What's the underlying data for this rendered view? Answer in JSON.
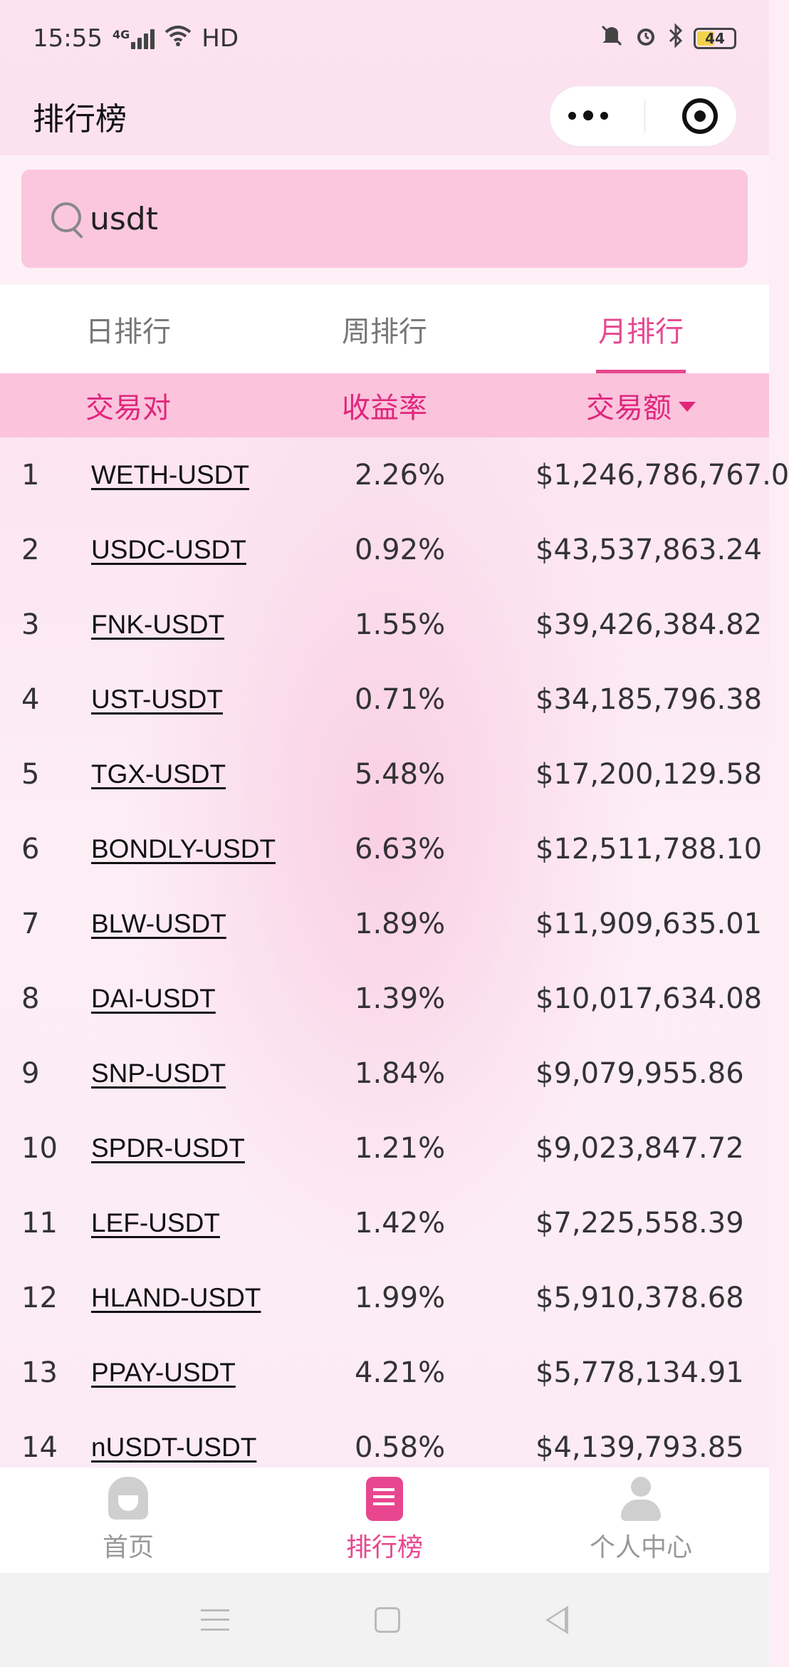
{
  "status_bar": {
    "time": "15:55",
    "network": "4G",
    "hd_label": "HD",
    "battery": "44",
    "icons": [
      "signal-icon",
      "wifi-icon",
      "mute-icon",
      "alarm-icon",
      "bluetooth-icon",
      "battery-icon"
    ]
  },
  "header": {
    "title": "排行榜",
    "menu_icon": "more-dots-icon",
    "close_icon": "target-icon"
  },
  "search": {
    "value": "usdt",
    "icon": "search-icon"
  },
  "tabs": [
    {
      "label": "日排行",
      "active": false
    },
    {
      "label": "周排行",
      "active": false
    },
    {
      "label": "月排行",
      "active": true
    }
  ],
  "table": {
    "headers": [
      "交易对",
      "收益率",
      "交易额"
    ],
    "sort_indicator": "caret-down-icon",
    "rows": [
      {
        "rank": "1",
        "pair": "WETH-USDT",
        "rate": "2.26%",
        "amount": "$1,246,786,767.0"
      },
      {
        "rank": "2",
        "pair": "USDC-USDT",
        "rate": "0.92%",
        "amount": "$43,537,863.24"
      },
      {
        "rank": "3",
        "pair": "FNK-USDT",
        "rate": "1.55%",
        "amount": "$39,426,384.82"
      },
      {
        "rank": "4",
        "pair": "UST-USDT",
        "rate": "0.71%",
        "amount": "$34,185,796.38"
      },
      {
        "rank": "5",
        "pair": "TGX-USDT",
        "rate": "5.48%",
        "amount": "$17,200,129.58"
      },
      {
        "rank": "6",
        "pair": "BONDLY-USDT",
        "rate": "6.63%",
        "amount": "$12,511,788.10"
      },
      {
        "rank": "7",
        "pair": "BLW-USDT",
        "rate": "1.89%",
        "amount": "$11,909,635.01"
      },
      {
        "rank": "8",
        "pair": "DAI-USDT",
        "rate": "1.39%",
        "amount": "$10,017,634.08"
      },
      {
        "rank": "9",
        "pair": "SNP-USDT",
        "rate": "1.84%",
        "amount": "$9,079,955.86"
      },
      {
        "rank": "10",
        "pair": "SPDR-USDT",
        "rate": "1.21%",
        "amount": "$9,023,847.72"
      },
      {
        "rank": "11",
        "pair": "LEF-USDT",
        "rate": "1.42%",
        "amount": "$7,225,558.39"
      },
      {
        "rank": "12",
        "pair": "HLAND-USDT",
        "rate": "1.99%",
        "amount": "$5,910,378.68"
      },
      {
        "rank": "13",
        "pair": "PPAY-USDT",
        "rate": "4.21%",
        "amount": "$5,778,134.91"
      },
      {
        "rank": "14",
        "pair": "nUSDT-USDT",
        "rate": "0.58%",
        "amount": "$4,139,793.85"
      }
    ]
  },
  "tabbar": [
    {
      "label": "首页",
      "icon": "home-icon",
      "active": false
    },
    {
      "label": "排行榜",
      "icon": "ranking-icon",
      "active": true
    },
    {
      "label": "个人中心",
      "icon": "user-icon",
      "active": false
    }
  ],
  "colors": {
    "accent": "#e8478f",
    "header_bg": "#fbc3dc",
    "search_bg": "#fbc7df"
  }
}
